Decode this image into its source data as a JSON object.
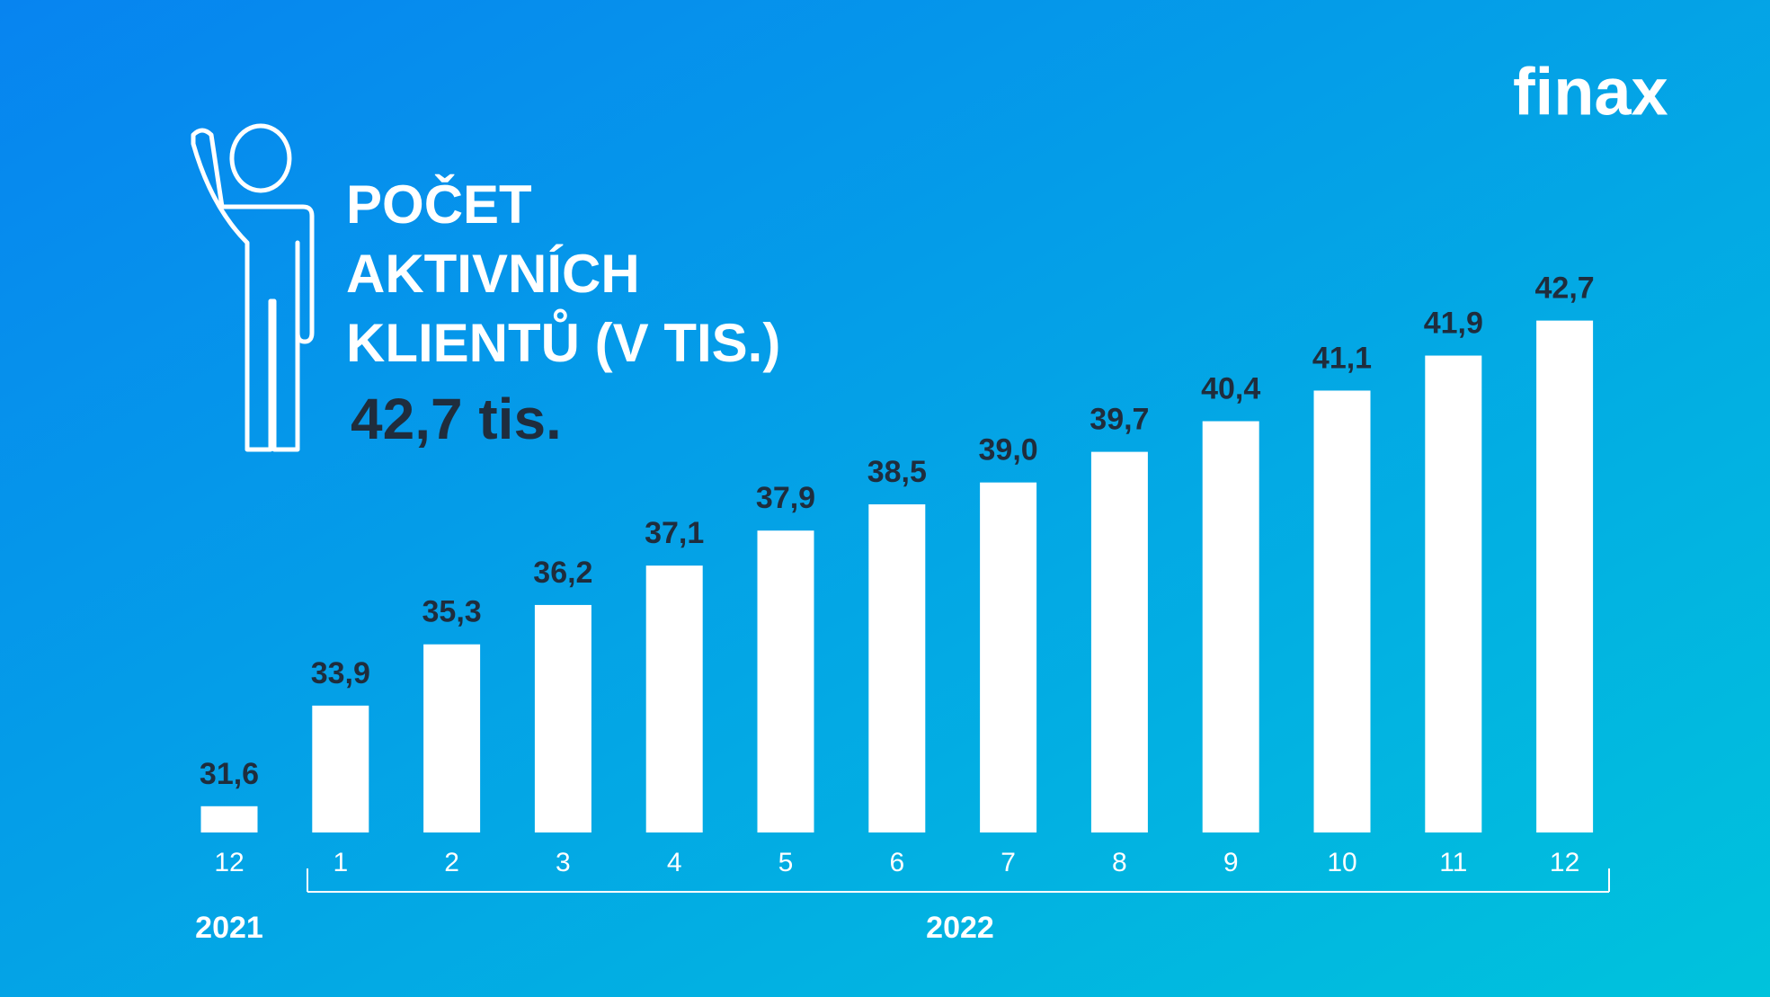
{
  "brand": "finax",
  "chart_data": {
    "type": "bar",
    "title": [
      "POČET",
      "AKTIVNÍCH",
      "KLIENTŮ (V TIS.)"
    ],
    "subtitle": "42,7 tis.",
    "categories": [
      "12",
      "1",
      "2",
      "3",
      "4",
      "5",
      "6",
      "7",
      "8",
      "9",
      "10",
      "11",
      "12"
    ],
    "values": [
      31.6,
      33.9,
      35.3,
      36.2,
      37.1,
      37.9,
      38.5,
      39.0,
      39.7,
      40.4,
      41.1,
      41.9,
      42.7
    ],
    "value_labels": [
      "31,6",
      "33,9",
      "35,3",
      "36,2",
      "37,1",
      "37,9",
      "38,5",
      "39,0",
      "39,7",
      "40,4",
      "41,1",
      "41,9",
      "42,7"
    ],
    "year_labels": [
      "2021",
      "2022"
    ],
    "color": "#ffffff",
    "ylim": [
      31,
      43
    ]
  }
}
